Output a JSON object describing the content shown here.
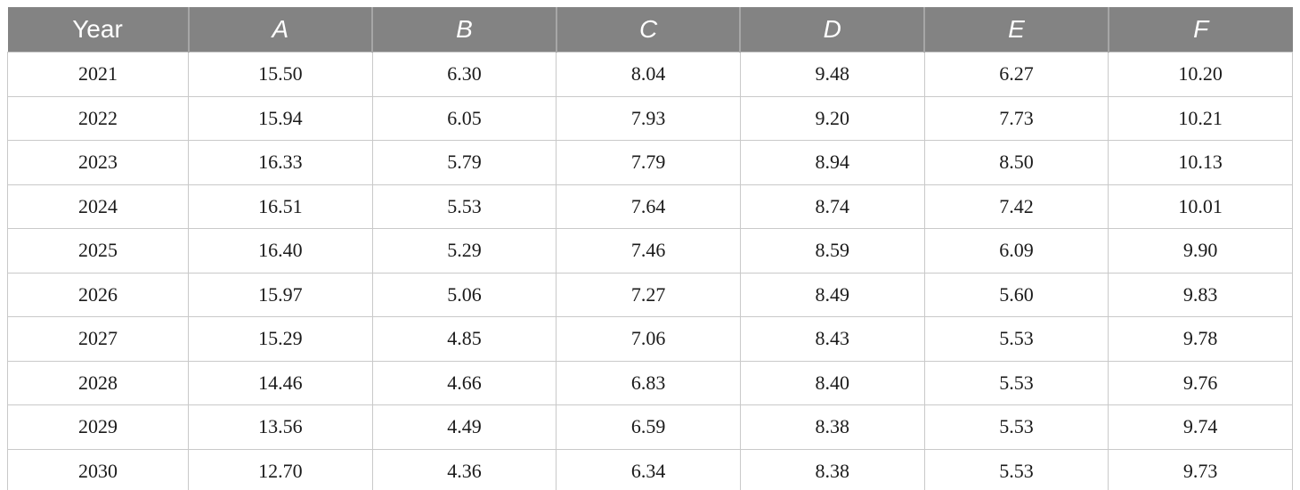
{
  "chart_data": {
    "type": "table",
    "columns": [
      "Year",
      "A",
      "B",
      "C",
      "D",
      "E",
      "F"
    ],
    "categories": [
      2021,
      2022,
      2023,
      2024,
      2025,
      2026,
      2027,
      2028,
      2029,
      2030
    ],
    "series": [
      {
        "name": "A",
        "values": [
          15.5,
          15.94,
          16.33,
          16.51,
          16.4,
          15.97,
          15.29,
          14.46,
          13.56,
          12.7
        ]
      },
      {
        "name": "B",
        "values": [
          6.3,
          6.05,
          5.79,
          5.53,
          5.29,
          5.06,
          4.85,
          4.66,
          4.49,
          4.36
        ]
      },
      {
        "name": "C",
        "values": [
          8.04,
          7.93,
          7.79,
          7.64,
          7.46,
          7.27,
          7.06,
          6.83,
          6.59,
          6.34
        ]
      },
      {
        "name": "D",
        "values": [
          9.48,
          9.2,
          8.94,
          8.74,
          8.59,
          8.49,
          8.43,
          8.4,
          8.38,
          8.38
        ]
      },
      {
        "name": "E",
        "values": [
          6.27,
          7.73,
          8.5,
          7.42,
          6.09,
          5.6,
          5.53,
          5.53,
          5.53,
          5.53
        ]
      },
      {
        "name": "F",
        "values": [
          10.2,
          10.21,
          10.13,
          10.01,
          9.9,
          9.83,
          9.78,
          9.76,
          9.74,
          9.73
        ]
      }
    ],
    "rows": [
      [
        "2021",
        "15.50",
        "6.30",
        "8.04",
        "9.48",
        "6.27",
        "10.20"
      ],
      [
        "2022",
        "15.94",
        "6.05",
        "7.93",
        "9.20",
        "7.73",
        "10.21"
      ],
      [
        "2023",
        "16.33",
        "5.79",
        "7.79",
        "8.94",
        "8.50",
        "10.13"
      ],
      [
        "2024",
        "16.51",
        "5.53",
        "7.64",
        "8.74",
        "7.42",
        "10.01"
      ],
      [
        "2025",
        "16.40",
        "5.29",
        "7.46",
        "8.59",
        "6.09",
        "9.90"
      ],
      [
        "2026",
        "15.97",
        "5.06",
        "7.27",
        "8.49",
        "5.60",
        "9.83"
      ],
      [
        "2027",
        "15.29",
        "4.85",
        "7.06",
        "8.43",
        "5.53",
        "9.78"
      ],
      [
        "2028",
        "14.46",
        "4.66",
        "6.83",
        "8.40",
        "5.53",
        "9.76"
      ],
      [
        "2029",
        "13.56",
        "4.49",
        "6.59",
        "8.38",
        "5.53",
        "9.74"
      ],
      [
        "2030",
        "12.70",
        "4.36",
        "6.34",
        "8.38",
        "5.53",
        "9.73"
      ]
    ]
  },
  "colors": {
    "header_background": "#838383",
    "header_text": "#ffffff",
    "header_divider": "#a6a6a6",
    "cell_border": "#c9c9c9",
    "table_bottom_border": "#8f8f8f",
    "body_text": "#1a1a1a"
  }
}
